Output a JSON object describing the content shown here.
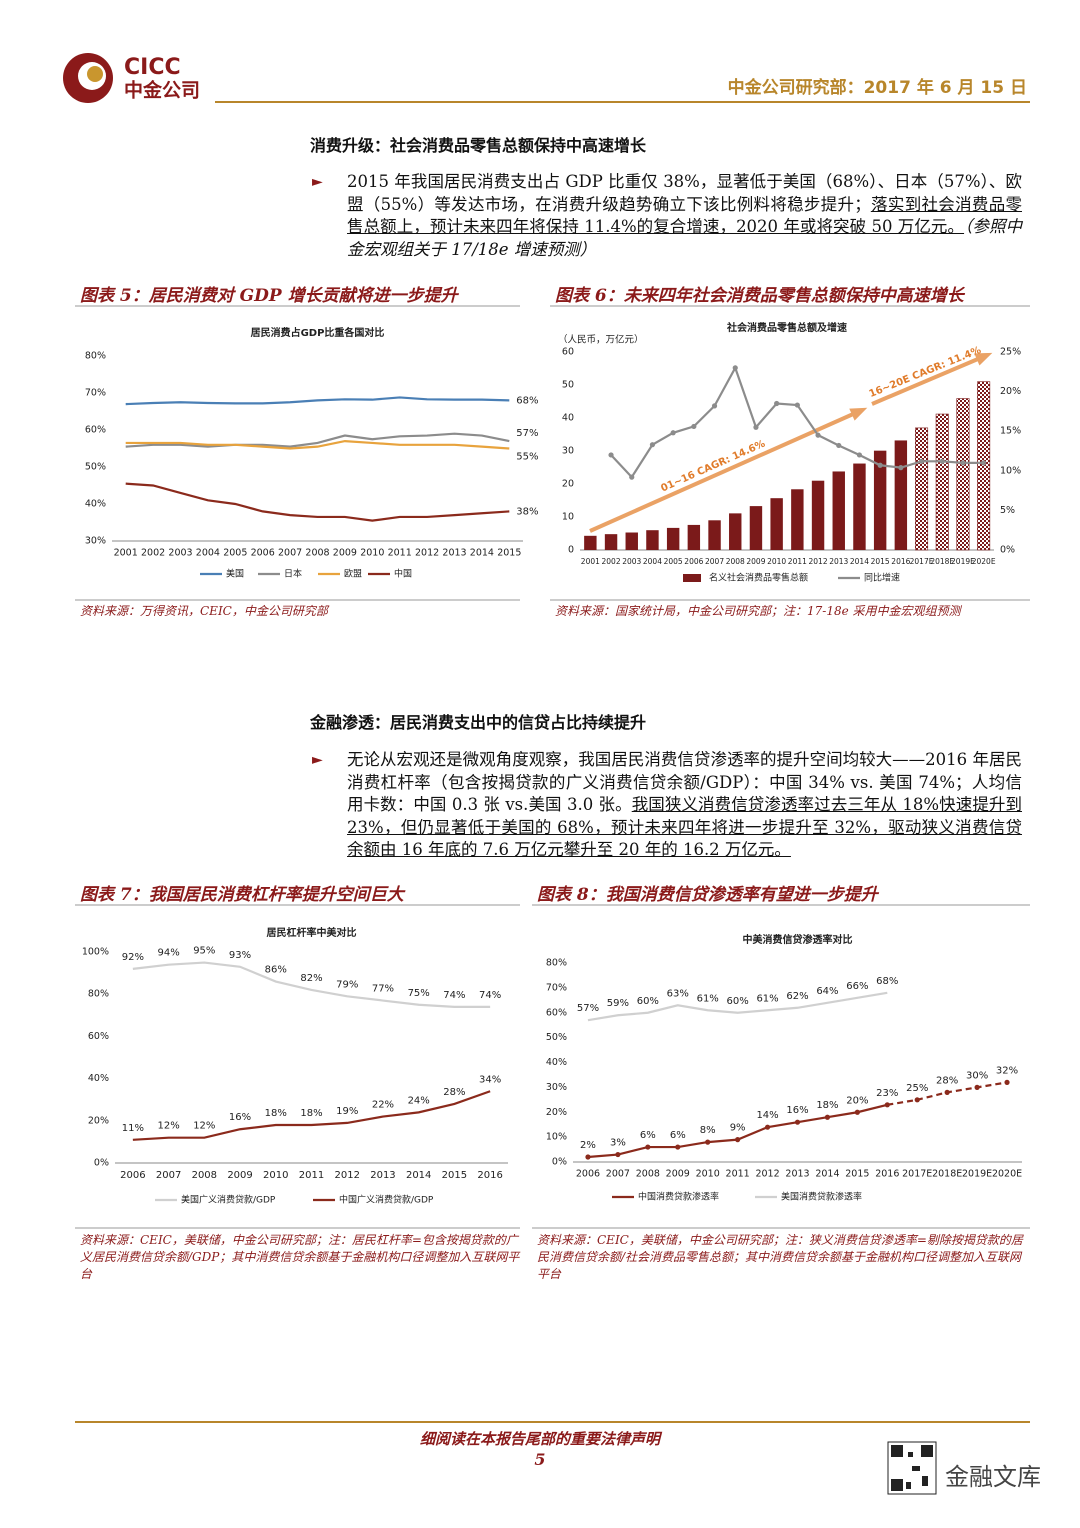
{
  "header": {
    "logo_en": "CICC",
    "logo_cn": "中金公司",
    "dept_date": "中金公司研究部：2017 年 6 月 15 日"
  },
  "sections": [
    {
      "heading": "消费升级：社会消费品零售总额保持中高速增长",
      "text": "2015 年我国居民消费支出占 GDP 比重仅 38%，显著低于美国（68%）、日本（57%）、欧盟（55%）等发达市场，在消费升级趋势确立下该比例料将稳步提升；",
      "underlined": "落实到社会消费品零售总额上，预计未来四年将保持 11.4%的复合增速，2020 年或将突破 50 万亿元。",
      "note": "（参照中金宏观组关于 17/18e 增速预测）"
    },
    {
      "heading": "金融渗透：居民消费支出中的信贷占比持续提升",
      "text": "无论从宏观还是微观角度观察，我国居民消费信贷渗透率的提升空间均较大——2016 年居民消费杠杆率（包含按揭贷款的广义消费信贷余额/GDP）：中国 34% vs. 美国 74%；人均信用卡数：中国 0.3 张 vs.美国 3.0 张。",
      "underlined": "我国狭义消费信贷渗透率过去三年从 18%快速提升到 23%，但仍显著低于美国的 68%，预计未来四年将进一步提升至 32%，驱动狭义消费信贷余额由 16 年底的 7.6 万亿元攀升至 20 年的 16.2 万亿元。"
    }
  ],
  "figures": [
    {
      "caption": "图表 5：居民消费对 GDP 增长贡献将进一步提升",
      "source": "资料来源：万得资讯，CEIC，中金公司研究部"
    },
    {
      "caption": "图表 6：未来四年社会消费品零售总额保持中高速增长",
      "source": "资料来源：国家统计局，中金公司研究部；注：17-18e 采用中金宏观组预测"
    },
    {
      "caption": "图表 7：我国居民消费杠杆率提升空间巨大",
      "source": "资料来源：CEIC，美联储，中金公司研究部；注：居民杠杆率=包含按揭贷款的广义居民消费信贷余额/GDP；其中消费信贷余额基于金融机构口径调整加入互联网平台"
    },
    {
      "caption": "图表 8：我国消费信贷渗透率有望进一步提升",
      "source": "资料来源：CEIC，美联储，中金公司研究部；注：狭义消费信贷渗透率=剔除按揭贷款的居民消费信贷余额/社会消费品零售总额；其中消费信贷余额基于金融机构口径调整加入互联网平台"
    }
  ],
  "chart_data": [
    {
      "type": "line",
      "title": "居民消费占GDP比重各国对比",
      "categories": [
        "2001",
        "2002",
        "2003",
        "2004",
        "2005",
        "2006",
        "2007",
        "2008",
        "2009",
        "2010",
        "2011",
        "2012",
        "2013",
        "2014",
        "2015"
      ],
      "ylim": [
        30,
        80
      ],
      "yticks": [
        {
          "value": 30,
          "label": "30%"
        },
        {
          "value": 40,
          "label": "40%"
        },
        {
          "value": 50,
          "label": "50%"
        },
        {
          "value": 60,
          "label": "60%"
        },
        {
          "value": 70,
          "label": "70%"
        },
        {
          "value": 80,
          "label": "80%"
        }
      ],
      "grid": false,
      "series": [
        {
          "name": "美国",
          "color": "#4a7fb5",
          "values": [
            67,
            67.3,
            67.5,
            67.3,
            67.2,
            67.2,
            67.5,
            68,
            68.3,
            68.2,
            68.8,
            68.3,
            68.2,
            68.2,
            68
          ],
          "value_labels": [
            null,
            null,
            null,
            null,
            null,
            null,
            null,
            null,
            null,
            null,
            null,
            null,
            null,
            null,
            "68%"
          ]
        },
        {
          "name": "日本",
          "color": "#8c8c8c",
          "values": [
            55.5,
            56,
            56,
            55.5,
            56,
            56,
            55.5,
            56.5,
            58.5,
            57.5,
            58.3,
            58.5,
            59,
            58.5,
            57
          ],
          "value_labels": [
            null,
            null,
            null,
            null,
            null,
            null,
            null,
            null,
            null,
            null,
            null,
            null,
            null,
            null,
            "57%"
          ]
        },
        {
          "name": "欧盟",
          "color": "#e8a33d",
          "values": [
            56.5,
            56.5,
            56.5,
            56,
            56,
            55.5,
            55,
            55.5,
            57,
            56.5,
            56,
            56,
            56,
            55.5,
            55
          ],
          "value_labels": [
            null,
            null,
            null,
            null,
            null,
            null,
            null,
            null,
            null,
            null,
            null,
            null,
            null,
            null,
            "55%"
          ]
        },
        {
          "name": "中国",
          "color": "#8b2a1c",
          "values": [
            45.5,
            45,
            43,
            41,
            40,
            38,
            37,
            36.5,
            36.5,
            35.5,
            36.5,
            36.5,
            37,
            37.5,
            38
          ],
          "value_labels": [
            null,
            null,
            null,
            null,
            null,
            null,
            null,
            null,
            null,
            null,
            null,
            null,
            null,
            null,
            "38%"
          ]
        }
      ]
    },
    {
      "type": "bar",
      "title": "社会消费品零售总额及增速",
      "y_label": "（人民币，万亿元）",
      "categories": [
        "2001",
        "2002",
        "2003",
        "2004",
        "2005",
        "2006",
        "2007",
        "2008",
        "2009",
        "2010",
        "2011",
        "2012",
        "2013",
        "2014",
        "2015",
        "2016",
        "2017E",
        "2018E",
        "2019E",
        "2020E"
      ],
      "ylim": [
        0,
        60
      ],
      "yticks": [
        0,
        10,
        20,
        30,
        40,
        50,
        60
      ],
      "y2lim": [
        0,
        25
      ],
      "y2ticks": [
        {
          "value": 0,
          "label": "0%"
        },
        {
          "value": 5,
          "label": "5%"
        },
        {
          "value": 10,
          "label": "10%"
        },
        {
          "value": 15,
          "label": "15%"
        },
        {
          "value": 20,
          "label": "20%"
        },
        {
          "value": 25,
          "label": "25%"
        }
      ],
      "grid": false,
      "annotations": [
        "01~16 CAGR: 14.6%",
        "16~20E CAGR: 11.4%"
      ],
      "series": [
        {
          "name": "名义社会消费品零售总额",
          "color": "#7b1a1a",
          "forecast_style": "checkered",
          "values": [
            4.3,
            4.8,
            5.3,
            6.0,
            6.7,
            7.6,
            9.0,
            11.1,
            13.3,
            15.7,
            18.4,
            21.0,
            23.8,
            26.2,
            30.1,
            33.2,
            37.0,
            41.2,
            45.9,
            51.0
          ]
        },
        {
          "name": "同比增速",
          "color": "#8c8c8c",
          "type": "line",
          "axis": "y2",
          "marker": true,
          "values": [
            null,
            12,
            9.2,
            13.3,
            14.8,
            15.6,
            18.2,
            23,
            15.5,
            18.5,
            18.3,
            14.5,
            13.2,
            12,
            10.7,
            10.4,
            11.2,
            11.2,
            11,
            11
          ]
        }
      ]
    },
    {
      "type": "line",
      "title": "居民杠杆率中美对比",
      "categories": [
        "2006",
        "2007",
        "2008",
        "2009",
        "2010",
        "2011",
        "2012",
        "2013",
        "2014",
        "2015",
        "2016"
      ],
      "ylim": [
        0,
        100
      ],
      "yticks": [
        {
          "value": 0,
          "label": "0%"
        },
        {
          "value": 20,
          "label": "20%"
        },
        {
          "value": 40,
          "label": "40%"
        },
        {
          "value": 60,
          "label": "60%"
        },
        {
          "value": 80,
          "label": "80%"
        },
        {
          "value": 100,
          "label": "100%"
        }
      ],
      "grid": false,
      "series": [
        {
          "name": "美国广义消费贷款/GDP",
          "color": "#d0d0d0",
          "values": [
            92,
            94,
            95,
            93,
            86,
            82,
            79,
            77,
            75,
            74,
            74
          ],
          "value_labels": [
            "92%",
            "94%",
            "95%",
            "93%",
            "86%",
            "82%",
            "79%",
            "77%",
            "75%",
            "74%",
            "74%"
          ]
        },
        {
          "name": "中国广义消费贷款/GDP",
          "color": "#8b2a1c",
          "values": [
            11,
            12,
            12,
            16,
            18,
            18,
            19,
            22,
            24,
            28,
            34
          ],
          "value_labels": [
            "11%",
            "12%",
            "12%",
            "16%",
            "18%",
            "18%",
            "19%",
            "22%",
            "24%",
            "28%",
            "34%"
          ]
        }
      ]
    },
    {
      "type": "line",
      "title": "中美消费信贷渗透率对比",
      "categories": [
        "2006",
        "2007",
        "2008",
        "2009",
        "2010",
        "2011",
        "2012",
        "2013",
        "2014",
        "2015",
        "2016",
        "2017E",
        "2018E",
        "2019E",
        "2020E"
      ],
      "ylim": [
        0,
        80
      ],
      "yticks": [
        {
          "value": 0,
          "label": "0%"
        },
        {
          "value": 10,
          "label": "10%"
        },
        {
          "value": 20,
          "label": "20%"
        },
        {
          "value": 30,
          "label": "30%"
        },
        {
          "value": 40,
          "label": "40%"
        },
        {
          "value": 50,
          "label": "50%"
        },
        {
          "value": 60,
          "label": "60%"
        },
        {
          "value": 70,
          "label": "70%"
        },
        {
          "value": 80,
          "label": "80%"
        }
      ],
      "grid": false,
      "series": [
        {
          "name": "中国消费贷款渗透率",
          "color": "#8b2a1c",
          "marker": true,
          "forecast_style": "dashed",
          "values": [
            2,
            3,
            6,
            6,
            8,
            9,
            14,
            16,
            18,
            20,
            23,
            25,
            28,
            30,
            32
          ],
          "value_labels": [
            "2%",
            "3%",
            "6%",
            "6%",
            "8%",
            "9%",
            "14%",
            "16%",
            "18%",
            "20%",
            "23%",
            "25%",
            "28%",
            "30%",
            "32%"
          ]
        },
        {
          "name": "美国消费贷款渗透率",
          "color": "#d0d0d0",
          "values": [
            57,
            59,
            60,
            63,
            61,
            60,
            61,
            62,
            64,
            66,
            68,
            null,
            null,
            null,
            null
          ],
          "value_labels": [
            "57%",
            "59%",
            "60%",
            "63%",
            "61%",
            "60%",
            "61%",
            "62%",
            "64%",
            "66%",
            "68%",
            null,
            null,
            null,
            null
          ]
        }
      ]
    }
  ],
  "footer": {
    "disclaimer": "细阅读在本报告尾部的重要法律声明",
    "page": "5",
    "watermark": "金融文库"
  }
}
